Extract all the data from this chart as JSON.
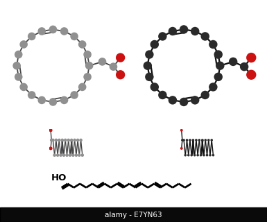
{
  "bg": "#ffffff",
  "gray_node": "#909090",
  "dark_node": "#2a2a2a",
  "red_node": "#cc1111",
  "bond_gray": "#444444",
  "bond_dark": "#111111",
  "wm_bg": "#0a0a0a",
  "wm_text": "alamy - E7YN63",
  "wm_fg": "#ffffff",
  "n_ring": 20,
  "ring_dbl": [
    0,
    5,
    10,
    15
  ],
  "chain_dbl": [
    4,
    7,
    10,
    13
  ],
  "n_chain": 20
}
